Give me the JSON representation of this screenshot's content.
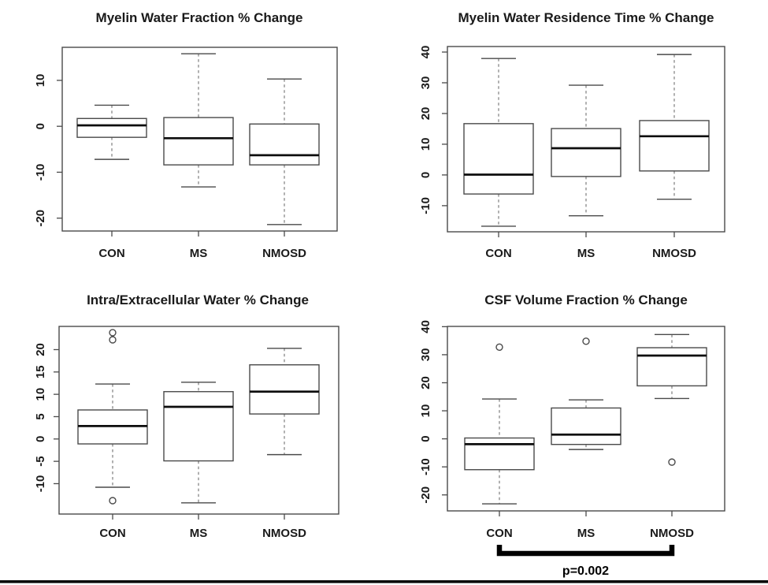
{
  "figure": {
    "background": "#ffffff",
    "frame_color": "#4a4a4a",
    "whisker_color": "#7d7d7d",
    "median_color": "#0d0d0d",
    "text_color": "#1a1a1a",
    "bottom_rule_color": "#000000"
  },
  "chart_data": [
    {
      "type": "box",
      "title": "Myelin Water Fraction % Change",
      "categories": [
        "CON",
        "MS",
        "NMOSD"
      ],
      "ylim": [
        -22.8,
        17.2
      ],
      "yticks": [
        10,
        0,
        -10,
        -20
      ],
      "grid": false,
      "series": [
        {
          "name": "CON",
          "low": -7.2,
          "q1": -2.4,
          "median": 0.2,
          "q3": 1.7,
          "high": 4.6,
          "outliers": []
        },
        {
          "name": "MS",
          "low": -13.2,
          "q1": -8.4,
          "median": -2.6,
          "q3": 1.9,
          "high": 15.8,
          "outliers": []
        },
        {
          "name": "NMOSD",
          "low": -21.4,
          "q1": -8.4,
          "median": -6.3,
          "q3": 0.5,
          "high": 10.3,
          "outliers": []
        }
      ]
    },
    {
      "type": "box",
      "title": "Myelin Water Residence Time % Change",
      "categories": [
        "CON",
        "MS",
        "NMOSD"
      ],
      "ylim": [
        -18.5,
        41.8
      ],
      "yticks": [
        40,
        30,
        20,
        10,
        0,
        -10
      ],
      "grid": false,
      "series": [
        {
          "name": "CON",
          "low": -16.7,
          "q1": -6.2,
          "median": 0.1,
          "q3": 16.7,
          "high": 37.9,
          "outliers": []
        },
        {
          "name": "MS",
          "low": -13.3,
          "q1": -0.5,
          "median": 8.7,
          "q3": 15.1,
          "high": 29.2,
          "outliers": []
        },
        {
          "name": "NMOSD",
          "low": -7.9,
          "q1": 1.3,
          "median": 12.6,
          "q3": 17.7,
          "high": 39.2,
          "outliers": []
        }
      ]
    },
    {
      "type": "box",
      "title": "Intra/Extracellular Water % Change",
      "categories": [
        "CON",
        "MS",
        "NMOSD"
      ],
      "ylim": [
        -16.8,
        25.2
      ],
      "yticks": [
        20,
        15,
        10,
        5,
        0,
        -5,
        -10
      ],
      "grid": false,
      "series": [
        {
          "name": "CON",
          "low": -10.8,
          "q1": -1.1,
          "median": 2.9,
          "q3": 6.5,
          "high": 12.3,
          "outliers": [
            23.8,
            22.2,
            -13.8
          ]
        },
        {
          "name": "MS",
          "low": -14.3,
          "q1": -4.9,
          "median": 7.2,
          "q3": 10.6,
          "high": 12.7,
          "outliers": []
        },
        {
          "name": "NMOSD",
          "low": -3.5,
          "q1": 5.6,
          "median": 10.6,
          "q3": 16.6,
          "high": 20.3,
          "outliers": []
        }
      ]
    },
    {
      "type": "box",
      "title": "CSF Volume Fraction % Change",
      "categories": [
        "CON",
        "MS",
        "NMOSD"
      ],
      "ylim": [
        -25.7,
        40.1
      ],
      "yticks": [
        40,
        30,
        20,
        10,
        0,
        -10,
        -20
      ],
      "grid": false,
      "series": [
        {
          "name": "CON",
          "low": -23.2,
          "q1": -11.0,
          "median": -1.9,
          "q3": 0.3,
          "high": 14.2,
          "outliers": [
            32.7
          ]
        },
        {
          "name": "MS",
          "low": -3.8,
          "q1": -2.0,
          "median": 1.5,
          "q3": 11.0,
          "high": 13.9,
          "outliers": [
            34.8
          ]
        },
        {
          "name": "NMOSD",
          "low": 14.4,
          "q1": 18.9,
          "median": 29.7,
          "q3": 32.5,
          "high": 37.2,
          "outliers": [
            -8.3
          ]
        }
      ],
      "annotation": {
        "text": "p=0.002",
        "from": "CON",
        "to": "NMOSD"
      }
    }
  ]
}
